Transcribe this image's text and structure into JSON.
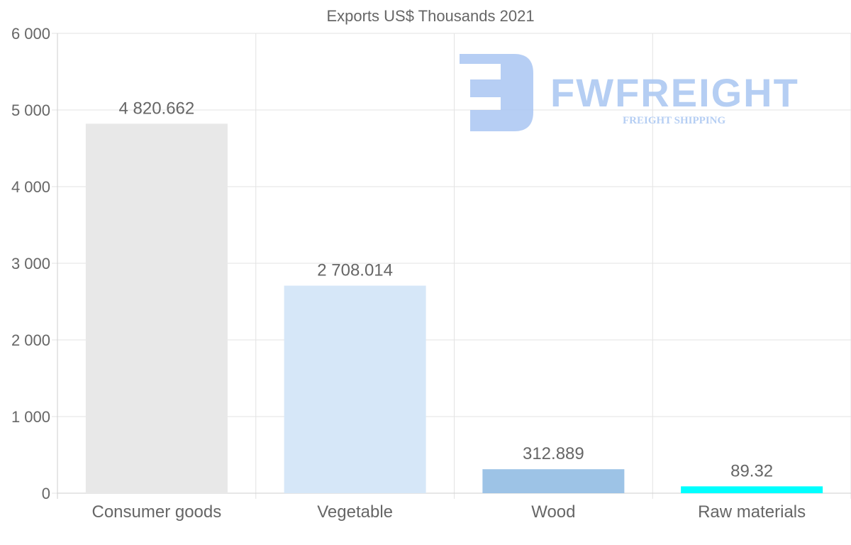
{
  "chart_data": {
    "type": "bar",
    "title": "Exports US$ Thousands 2021",
    "categories": [
      "Consumer goods",
      "Vegetable",
      "Wood",
      "Raw materials"
    ],
    "values": [
      4820.662,
      2708.014,
      312.889,
      89.32
    ],
    "data_labels": [
      "4 820.662",
      "2 708.014",
      "312.889",
      "89.32"
    ],
    "colors": [
      "#e8e8e8",
      "#d6e7f8",
      "#9dc3e6",
      "#00ffff"
    ],
    "ylim": [
      0,
      6000
    ],
    "yticks": [
      0,
      1000,
      2000,
      3000,
      4000,
      5000,
      6000
    ],
    "ytick_labels": [
      "0",
      "1 000",
      "2 000",
      "3 000",
      "4 000",
      "5 000",
      "6 000"
    ],
    "xlabel": "",
    "ylabel": "",
    "grid": true,
    "legend": "none"
  },
  "watermark": {
    "brand": "FWFREIGHT",
    "tagline": "FREIGHT SHIPPING",
    "color": "#a9c6f2"
  }
}
